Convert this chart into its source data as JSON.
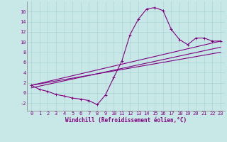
{
  "xlabel": "Windchill (Refroidissement éolien,°C)",
  "background_color": "#c8e8e8",
  "line_color": "#800080",
  "x_ticks": [
    0,
    1,
    2,
    3,
    4,
    5,
    6,
    7,
    8,
    9,
    10,
    11,
    12,
    13,
    14,
    15,
    16,
    17,
    18,
    19,
    20,
    21,
    22,
    23
  ],
  "y_ticks": [
    -2,
    0,
    2,
    4,
    6,
    8,
    10,
    12,
    14,
    16
  ],
  "ylim": [
    -3.5,
    18
  ],
  "xlim": [
    -0.5,
    23.5
  ],
  "curve1_x": [
    0,
    1,
    2,
    3,
    4,
    5,
    6,
    7,
    8,
    9,
    10,
    11,
    12,
    13,
    14,
    15,
    16,
    17,
    18,
    19,
    20,
    21,
    22,
    23
  ],
  "curve1_y": [
    1.5,
    0.7,
    0.3,
    -0.3,
    -0.6,
    -1.0,
    -1.2,
    -1.5,
    -2.3,
    -0.4,
    3.0,
    6.3,
    11.5,
    14.5,
    16.5,
    16.8,
    16.2,
    12.5,
    10.5,
    9.5,
    10.8,
    10.8,
    10.2,
    10.2
  ],
  "line2_x": [
    0,
    23
  ],
  "line2_y": [
    1.5,
    10.2
  ],
  "line3_x": [
    0,
    23
  ],
  "line3_y": [
    1.0,
    9.0
  ],
  "line4_x": [
    0,
    23
  ],
  "line4_y": [
    1.5,
    8.0
  ],
  "grid_color": "#aad4d4",
  "spine_color": "#808080",
  "tick_fontsize": 5.0,
  "xlabel_fontsize": 5.5
}
